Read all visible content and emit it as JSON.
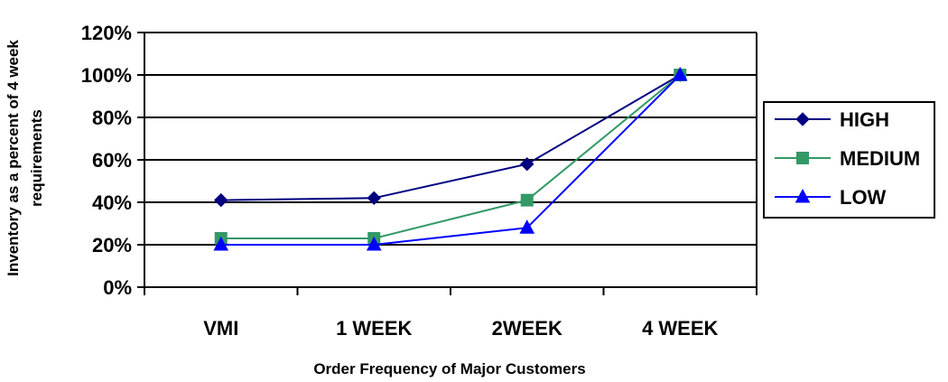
{
  "chart_data": {
    "type": "line",
    "categories": [
      "VMI",
      "1 WEEK",
      "2WEEK",
      "4 WEEK"
    ],
    "series": [
      {
        "name": "HIGH",
        "values": [
          41,
          42,
          58,
          100
        ],
        "color": "#000080",
        "marker": "diamond"
      },
      {
        "name": "MEDIUM",
        "values": [
          23,
          23,
          41,
          100
        ],
        "color": "#339966",
        "marker": "square"
      },
      {
        "name": "LOW",
        "values": [
          20,
          20,
          28,
          100
        ],
        "color": "#0000ff",
        "marker": "triangle"
      }
    ],
    "yticks": [
      "0%",
      "20%",
      "40%",
      "60%",
      "80%",
      "100%",
      "120%"
    ],
    "ylim": [
      0,
      120
    ],
    "xlabel": "Order Frequency of Major Customers",
    "ylabel_line1": "Inventory as a percent of 4 week",
    "ylabel_line2": "requirements",
    "grid": true,
    "legend_position": "right"
  }
}
